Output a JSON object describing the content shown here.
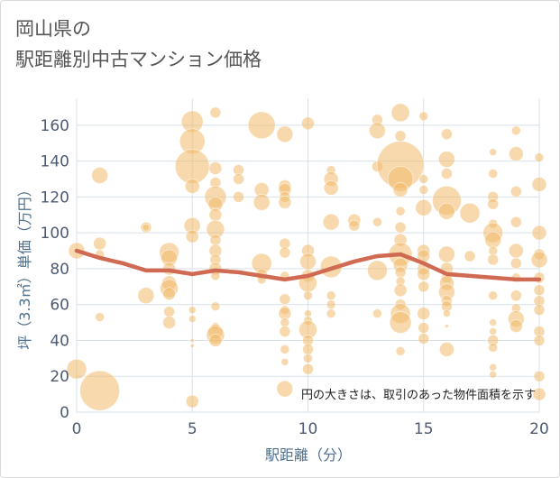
{
  "title": {
    "line1": "岡山県の",
    "line2": "駅距離別中古マンション価格"
  },
  "chart_data": {
    "type": "scatter",
    "xlabel": "駅距離（分）",
    "ylabel": "坪（3.3㎡）単価（万円）",
    "xlim": [
      0,
      20
    ],
    "ylim": [
      0,
      175
    ],
    "xticks": [
      0,
      5,
      10,
      15,
      20
    ],
    "yticks": [
      0,
      20,
      40,
      60,
      80,
      100,
      120,
      140,
      160
    ],
    "grid": true,
    "annotation": "円の大きさは、取引のあった物件面積を示す",
    "colors": {
      "bubble": "#f0b96a",
      "line": "#d06a52",
      "grid": "#d7e0ea"
    },
    "trend_line": {
      "x": [
        0,
        1,
        2,
        3,
        4,
        5,
        6,
        7,
        8,
        9,
        10,
        11,
        12,
        13,
        14,
        15,
        16,
        17,
        18,
        19,
        20
      ],
      "y": [
        90,
        86,
        83,
        79,
        79,
        77,
        79,
        78,
        76,
        74,
        76,
        80,
        84,
        87,
        88,
        83,
        77,
        76,
        75,
        74,
        74
      ]
    },
    "points": [
      {
        "x": 0,
        "y": 90,
        "size": 0.9
      },
      {
        "x": 0,
        "y": 24,
        "size": 1.1
      },
      {
        "x": 1,
        "y": 12,
        "size": 2.2
      },
      {
        "x": 1,
        "y": 132,
        "size": 0.9
      },
      {
        "x": 1,
        "y": 94,
        "size": 0.7
      },
      {
        "x": 1,
        "y": 88,
        "size": 0.5
      },
      {
        "x": 1,
        "y": 53,
        "size": 0.5
      },
      {
        "x": 3,
        "y": 103,
        "size": 0.6
      },
      {
        "x": 3,
        "y": 103,
        "size": 0.4
      },
      {
        "x": 3,
        "y": 65,
        "size": 0.9
      },
      {
        "x": 4,
        "y": 89,
        "size": 1.1
      },
      {
        "x": 4,
        "y": 86,
        "size": 0.9
      },
      {
        "x": 4,
        "y": 80,
        "size": 0.7
      },
      {
        "x": 4,
        "y": 72,
        "size": 0.8
      },
      {
        "x": 4,
        "y": 69,
        "size": 1.0
      },
      {
        "x": 4,
        "y": 66,
        "size": 0.7
      },
      {
        "x": 4,
        "y": 56,
        "size": 0.6
      },
      {
        "x": 4,
        "y": 50,
        "size": 0.7
      },
      {
        "x": 5,
        "y": 162,
        "size": 1.2
      },
      {
        "x": 5,
        "y": 151,
        "size": 1.4
      },
      {
        "x": 5,
        "y": 137,
        "size": 1.9
      },
      {
        "x": 5,
        "y": 126,
        "size": 0.8
      },
      {
        "x": 5,
        "y": 104,
        "size": 0.9
      },
      {
        "x": 5,
        "y": 98,
        "size": 0.7
      },
      {
        "x": 5,
        "y": 57,
        "size": 0.4
      },
      {
        "x": 5,
        "y": 52,
        "size": 0.4
      },
      {
        "x": 5,
        "y": 40,
        "size": 0.2
      },
      {
        "x": 5,
        "y": 37,
        "size": 0.2
      },
      {
        "x": 5,
        "y": 6,
        "size": 0.7
      },
      {
        "x": 6,
        "y": 167,
        "size": 0.6
      },
      {
        "x": 6,
        "y": 136,
        "size": 0.7
      },
      {
        "x": 6,
        "y": 128,
        "size": 0.6
      },
      {
        "x": 6,
        "y": 120,
        "size": 1.2
      },
      {
        "x": 6,
        "y": 116,
        "size": 0.8
      },
      {
        "x": 6,
        "y": 110,
        "size": 0.7
      },
      {
        "x": 6,
        "y": 102,
        "size": 1.0
      },
      {
        "x": 6,
        "y": 96,
        "size": 0.6
      },
      {
        "x": 6,
        "y": 90,
        "size": 0.7
      },
      {
        "x": 6,
        "y": 85,
        "size": 0.6
      },
      {
        "x": 6,
        "y": 80,
        "size": 0.7
      },
      {
        "x": 6,
        "y": 76,
        "size": 0.5
      },
      {
        "x": 6,
        "y": 59,
        "size": 0.5
      },
      {
        "x": 6,
        "y": 48,
        "size": 0.4
      },
      {
        "x": 6,
        "y": 45,
        "size": 0.8
      },
      {
        "x": 6,
        "y": 43,
        "size": 1.0
      },
      {
        "x": 6,
        "y": 40,
        "size": 0.7
      },
      {
        "x": 7,
        "y": 135,
        "size": 0.6
      },
      {
        "x": 7,
        "y": 130,
        "size": 0.6
      },
      {
        "x": 7,
        "y": 120,
        "size": 0.6
      },
      {
        "x": 8,
        "y": 160,
        "size": 1.5
      },
      {
        "x": 8,
        "y": 124,
        "size": 0.8
      },
      {
        "x": 8,
        "y": 117,
        "size": 0.9
      },
      {
        "x": 8,
        "y": 83,
        "size": 1.1
      },
      {
        "x": 8,
        "y": 77,
        "size": 0.6
      },
      {
        "x": 8,
        "y": 74,
        "size": 0.5
      },
      {
        "x": 9,
        "y": 155,
        "size": 0.9
      },
      {
        "x": 9,
        "y": 126,
        "size": 0.7
      },
      {
        "x": 9,
        "y": 124,
        "size": 0.7
      },
      {
        "x": 9,
        "y": 120,
        "size": 0.6
      },
      {
        "x": 9,
        "y": 117,
        "size": 0.7
      },
      {
        "x": 9,
        "y": 94,
        "size": 0.6
      },
      {
        "x": 9,
        "y": 89,
        "size": 0.6
      },
      {
        "x": 9,
        "y": 76,
        "size": 0.5
      },
      {
        "x": 9,
        "y": 63,
        "size": 0.6
      },
      {
        "x": 9,
        "y": 57,
        "size": 0.5
      },
      {
        "x": 9,
        "y": 55,
        "size": 0.7
      },
      {
        "x": 9,
        "y": 50,
        "size": 0.5
      },
      {
        "x": 9,
        "y": 45,
        "size": 0.6
      },
      {
        "x": 9,
        "y": 35,
        "size": 0.5
      },
      {
        "x": 9,
        "y": 28,
        "size": 0.4
      },
      {
        "x": 9,
        "y": 13,
        "size": 0.9
      },
      {
        "x": 10,
        "y": 161,
        "size": 0.7
      },
      {
        "x": 10,
        "y": 90,
        "size": 0.7
      },
      {
        "x": 10,
        "y": 84,
        "size": 0.9
      },
      {
        "x": 10,
        "y": 76,
        "size": 0.7
      },
      {
        "x": 10,
        "y": 72,
        "size": 1.0
      },
      {
        "x": 10,
        "y": 65,
        "size": 0.5
      },
      {
        "x": 10,
        "y": 55,
        "size": 0.4
      },
      {
        "x": 10,
        "y": 51,
        "size": 0.5
      },
      {
        "x": 10,
        "y": 46,
        "size": 1.0
      },
      {
        "x": 10,
        "y": 40,
        "size": 0.6
      },
      {
        "x": 10,
        "y": 35,
        "size": 0.6
      },
      {
        "x": 10,
        "y": 30,
        "size": 0.5
      },
      {
        "x": 10,
        "y": 24,
        "size": 0.6
      },
      {
        "x": 11,
        "y": 135,
        "size": 0.5
      },
      {
        "x": 11,
        "y": 130,
        "size": 0.8
      },
      {
        "x": 11,
        "y": 125,
        "size": 0.8
      },
      {
        "x": 11,
        "y": 106,
        "size": 0.9
      },
      {
        "x": 11,
        "y": 81,
        "size": 1.2
      },
      {
        "x": 11,
        "y": 65,
        "size": 0.5
      },
      {
        "x": 11,
        "y": 60,
        "size": 0.5
      },
      {
        "x": 11,
        "y": 55,
        "size": 0.5
      },
      {
        "x": 12,
        "y": 107,
        "size": 0.7
      },
      {
        "x": 12,
        "y": 104,
        "size": 0.6
      },
      {
        "x": 13,
        "y": 163,
        "size": 0.6
      },
      {
        "x": 13,
        "y": 157,
        "size": 0.9
      },
      {
        "x": 13,
        "y": 137,
        "size": 0.6
      },
      {
        "x": 13,
        "y": 106,
        "size": 0.5
      },
      {
        "x": 13,
        "y": 79,
        "size": 1.1
      },
      {
        "x": 13,
        "y": 55,
        "size": 0.5
      },
      {
        "x": 14,
        "y": 167,
        "size": 1.0
      },
      {
        "x": 14,
        "y": 154,
        "size": 0.6
      },
      {
        "x": 14,
        "y": 138,
        "size": 2.6
      },
      {
        "x": 14,
        "y": 130,
        "size": 1.4
      },
      {
        "x": 14,
        "y": 124,
        "size": 0.8
      },
      {
        "x": 14,
        "y": 112,
        "size": 0.5
      },
      {
        "x": 14,
        "y": 103,
        "size": 0.6
      },
      {
        "x": 14,
        "y": 96,
        "size": 0.7
      },
      {
        "x": 14,
        "y": 88,
        "size": 1.3
      },
      {
        "x": 14,
        "y": 82,
        "size": 0.8
      },
      {
        "x": 14,
        "y": 78,
        "size": 0.6
      },
      {
        "x": 14,
        "y": 73,
        "size": 0.5
      },
      {
        "x": 14,
        "y": 68,
        "size": 0.7
      },
      {
        "x": 14,
        "y": 60,
        "size": 0.6
      },
      {
        "x": 14,
        "y": 55,
        "size": 1.1
      },
      {
        "x": 14,
        "y": 50,
        "size": 1.2
      },
      {
        "x": 14,
        "y": 34,
        "size": 0.5
      },
      {
        "x": 15,
        "y": 165,
        "size": 0.5
      },
      {
        "x": 15,
        "y": 130,
        "size": 0.5
      },
      {
        "x": 15,
        "y": 124,
        "size": 0.5
      },
      {
        "x": 15,
        "y": 114,
        "size": 0.9
      },
      {
        "x": 15,
        "y": 90,
        "size": 0.7
      },
      {
        "x": 15,
        "y": 87,
        "size": 0.7
      },
      {
        "x": 15,
        "y": 80,
        "size": 0.7
      },
      {
        "x": 15,
        "y": 77,
        "size": 0.7
      },
      {
        "x": 15,
        "y": 70,
        "size": 0.6
      },
      {
        "x": 15,
        "y": 55,
        "size": 0.7
      },
      {
        "x": 15,
        "y": 47,
        "size": 0.6
      },
      {
        "x": 15,
        "y": 41,
        "size": 0.6
      },
      {
        "x": 16,
        "y": 155,
        "size": 0.6
      },
      {
        "x": 16,
        "y": 141,
        "size": 0.9
      },
      {
        "x": 16,
        "y": 133,
        "size": 0.6
      },
      {
        "x": 16,
        "y": 118,
        "size": 1.6
      },
      {
        "x": 16,
        "y": 112,
        "size": 0.9
      },
      {
        "x": 16,
        "y": 88,
        "size": 0.9
      },
      {
        "x": 16,
        "y": 80,
        "size": 0.7
      },
      {
        "x": 16,
        "y": 75,
        "size": 0.6
      },
      {
        "x": 16,
        "y": 72,
        "size": 0.8
      },
      {
        "x": 16,
        "y": 67,
        "size": 0.9
      },
      {
        "x": 16,
        "y": 62,
        "size": 0.6
      },
      {
        "x": 16,
        "y": 59,
        "size": 0.6
      },
      {
        "x": 16,
        "y": 55,
        "size": 0.4
      },
      {
        "x": 16,
        "y": 48,
        "size": 0.2
      },
      {
        "x": 16,
        "y": 35,
        "size": 0.8
      },
      {
        "x": 17,
        "y": 111,
        "size": 1.1
      },
      {
        "x": 17,
        "y": 87,
        "size": 0.6
      },
      {
        "x": 18,
        "y": 145,
        "size": 0.4
      },
      {
        "x": 18,
        "y": 133,
        "size": 0.5
      },
      {
        "x": 18,
        "y": 120,
        "size": 0.6
      },
      {
        "x": 18,
        "y": 116,
        "size": 0.6
      },
      {
        "x": 18,
        "y": 105,
        "size": 0.5
      },
      {
        "x": 18,
        "y": 100,
        "size": 1.1
      },
      {
        "x": 18,
        "y": 96,
        "size": 0.9
      },
      {
        "x": 18,
        "y": 90,
        "size": 0.5
      },
      {
        "x": 18,
        "y": 85,
        "size": 0.6
      },
      {
        "x": 18,
        "y": 65,
        "size": 0.5
      },
      {
        "x": 18,
        "y": 50,
        "size": 0.4
      },
      {
        "x": 18,
        "y": 45,
        "size": 0.4
      },
      {
        "x": 18,
        "y": 40,
        "size": 0.6
      },
      {
        "x": 18,
        "y": 36,
        "size": 0.5
      },
      {
        "x": 18,
        "y": 25,
        "size": 0.4
      },
      {
        "x": 18,
        "y": 21,
        "size": 0.4
      },
      {
        "x": 19,
        "y": 157,
        "size": 0.5
      },
      {
        "x": 19,
        "y": 144,
        "size": 0.8
      },
      {
        "x": 19,
        "y": 123,
        "size": 0.6
      },
      {
        "x": 19,
        "y": 106,
        "size": 0.6
      },
      {
        "x": 19,
        "y": 90,
        "size": 0.8
      },
      {
        "x": 19,
        "y": 83,
        "size": 0.6
      },
      {
        "x": 19,
        "y": 75,
        "size": 0.5
      },
      {
        "x": 19,
        "y": 65,
        "size": 0.6
      },
      {
        "x": 19,
        "y": 58,
        "size": 0.5
      },
      {
        "x": 19,
        "y": 52,
        "size": 0.9
      },
      {
        "x": 19,
        "y": 48,
        "size": 0.7
      },
      {
        "x": 20,
        "y": 142,
        "size": 0.5
      },
      {
        "x": 20,
        "y": 127,
        "size": 0.8
      },
      {
        "x": 20,
        "y": 100,
        "size": 0.8
      },
      {
        "x": 20,
        "y": 88,
        "size": 0.6
      },
      {
        "x": 20,
        "y": 85,
        "size": 0.9
      },
      {
        "x": 20,
        "y": 75,
        "size": 0.6
      },
      {
        "x": 20,
        "y": 68,
        "size": 0.6
      },
      {
        "x": 20,
        "y": 62,
        "size": 0.6
      },
      {
        "x": 20,
        "y": 57,
        "size": 0.6
      },
      {
        "x": 20,
        "y": 45,
        "size": 0.6
      },
      {
        "x": 20,
        "y": 40,
        "size": 0.6
      },
      {
        "x": 20,
        "y": 20,
        "size": 0.6
      },
      {
        "x": 20,
        "y": 10,
        "size": 0.7
      }
    ]
  }
}
